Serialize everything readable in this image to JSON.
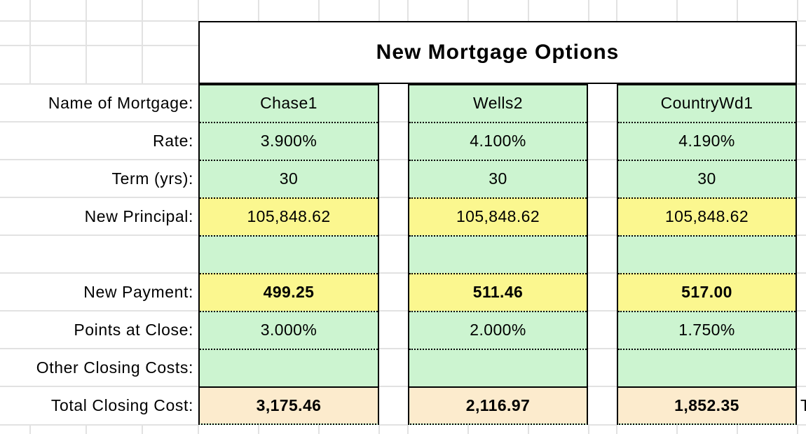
{
  "table": {
    "title": "New Mortgage Options",
    "row_labels": {
      "name": "Name of Mortgage:",
      "rate": "Rate:",
      "term": "Term (yrs):",
      "new_principal": "New Principal:",
      "new_payment": "New Payment:",
      "points_at_close": "Points at Close:",
      "other_closing_costs": "Other Closing Costs:",
      "total_closing_cost": "Total Closing Cost:"
    },
    "columns": [
      {
        "name": "Chase1",
        "rate": "3.900%",
        "term": "30",
        "new_principal": "105,848.62",
        "blank": "",
        "new_payment": "499.25",
        "points_at_close": "3.000%",
        "other_closing_costs": "",
        "total_closing_cost": "3,175.46"
      },
      {
        "name": "Wells2",
        "rate": "4.100%",
        "term": "30",
        "new_principal": "105,848.62",
        "blank": "",
        "new_payment": "511.46",
        "points_at_close": "2.000%",
        "other_closing_costs": "",
        "total_closing_cost": "2,116.97"
      },
      {
        "name": "CountryWd1",
        "rate": "4.190%",
        "term": "30",
        "new_principal": "105,848.62",
        "blank": "",
        "new_payment": "517.00",
        "points_at_close": "1.750%",
        "other_closing_costs": "",
        "total_closing_cost": "1,852.35"
      }
    ],
    "partial_text_right_of_table": "T"
  },
  "colors": {
    "cell_green": "#ccf4d0",
    "cell_yellow": "#fbf78f",
    "cell_total_orange": "#fcebcd",
    "table_border": "#000000",
    "gridline": "#e2e2e2"
  }
}
